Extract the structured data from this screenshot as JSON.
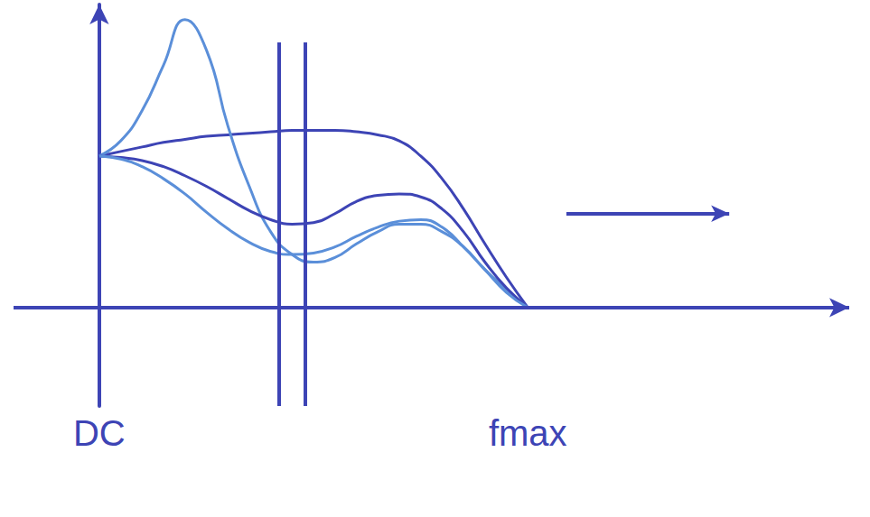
{
  "chart_data": {
    "type": "line",
    "x": [
      0,
      0.05,
      0.1,
      0.15,
      0.2,
      0.25,
      0.3,
      0.35,
      0.4,
      0.45,
      0.5,
      0.55,
      0.6,
      0.65,
      0.7,
      0.75,
      0.8,
      0.85,
      0.9,
      0.95,
      1.0
    ],
    "xlim": [
      -0.2,
      1.75
    ],
    "xticks": [
      {
        "value": 0,
        "label": "DC"
      },
      {
        "value": 1,
        "label": "fmax"
      }
    ],
    "ylim": [
      -0.65,
      2.0
    ],
    "tick_labels": "x",
    "grid": false,
    "series": [
      {
        "color": "#3d44b5",
        "values": [
          1.0,
          1.03,
          1.06,
          1.09,
          1.11,
          1.13,
          1.14,
          1.15,
          1.16,
          1.17,
          1.17,
          1.17,
          1.16,
          1.14,
          1.1,
          1.0,
          0.85,
          0.65,
          0.42,
          0.2,
          0.0
        ]
      },
      {
        "color": "#5b8fd9",
        "values": [
          1.0,
          1.1,
          1.3,
          1.6,
          1.9,
          1.7,
          1.2,
          0.8,
          0.5,
          0.35,
          0.3,
          0.33,
          0.42,
          0.5,
          0.55,
          0.55,
          0.5,
          0.4,
          0.25,
          0.12,
          0.0
        ]
      },
      {
        "color": "#3d44b5",
        "values": [
          1.0,
          0.99,
          0.97,
          0.93,
          0.87,
          0.8,
          0.72,
          0.64,
          0.58,
          0.55,
          0.56,
          0.62,
          0.7,
          0.74,
          0.75,
          0.73,
          0.65,
          0.5,
          0.3,
          0.13,
          0.0
        ]
      },
      {
        "color": "#5b8fd9",
        "values": [
          1.0,
          0.98,
          0.93,
          0.85,
          0.75,
          0.63,
          0.52,
          0.43,
          0.37,
          0.35,
          0.36,
          0.4,
          0.47,
          0.53,
          0.57,
          0.58,
          0.53,
          0.4,
          0.25,
          0.1,
          0.0
        ]
      }
    ],
    "vertical_lines": [
      0.42,
      0.48
    ],
    "arrow": {
      "x": [
        1.09,
        1.47
      ],
      "y": 0.62
    }
  }
}
